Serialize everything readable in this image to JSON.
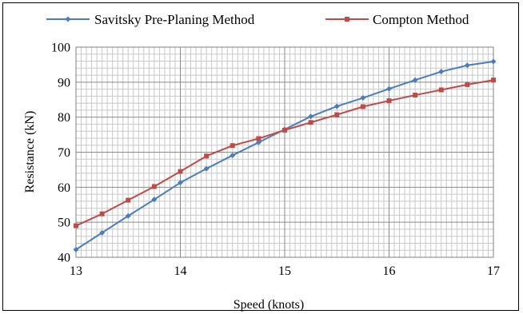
{
  "chart_data": {
    "type": "line",
    "title": "",
    "xlabel": "Speed (knots)",
    "ylabel": "Resistance (kN)",
    "xlim": [
      13,
      17
    ],
    "ylim": [
      40,
      100
    ],
    "x_ticks": [
      13,
      14,
      15,
      16,
      17
    ],
    "y_ticks": [
      40,
      50,
      60,
      70,
      80,
      90,
      100
    ],
    "grid": "major and minor",
    "legend_position": "top",
    "x": [
      13,
      13.25,
      13.5,
      13.75,
      14,
      14.25,
      14.5,
      14.75,
      15,
      15.25,
      15.5,
      15.75,
      16,
      16.25,
      16.5,
      16.75,
      17
    ],
    "series": [
      {
        "name": "Savitsky Pre-Planing Method",
        "color": "#4a7ebb",
        "marker": "diamond",
        "values": [
          42.2,
          47.0,
          51.8,
          56.5,
          61.3,
          65.3,
          69.1,
          72.8,
          76.5,
          80.2,
          83.1,
          85.5,
          88.1,
          90.6,
          93.0,
          94.8,
          95.9
        ]
      },
      {
        "name": "Compton Method",
        "color": "#be4b48",
        "marker": "square",
        "values": [
          49.0,
          52.4,
          56.3,
          60.2,
          64.5,
          68.9,
          71.9,
          73.9,
          76.3,
          78.5,
          80.7,
          83.0,
          84.7,
          86.3,
          87.8,
          89.3,
          90.6
        ]
      }
    ]
  }
}
